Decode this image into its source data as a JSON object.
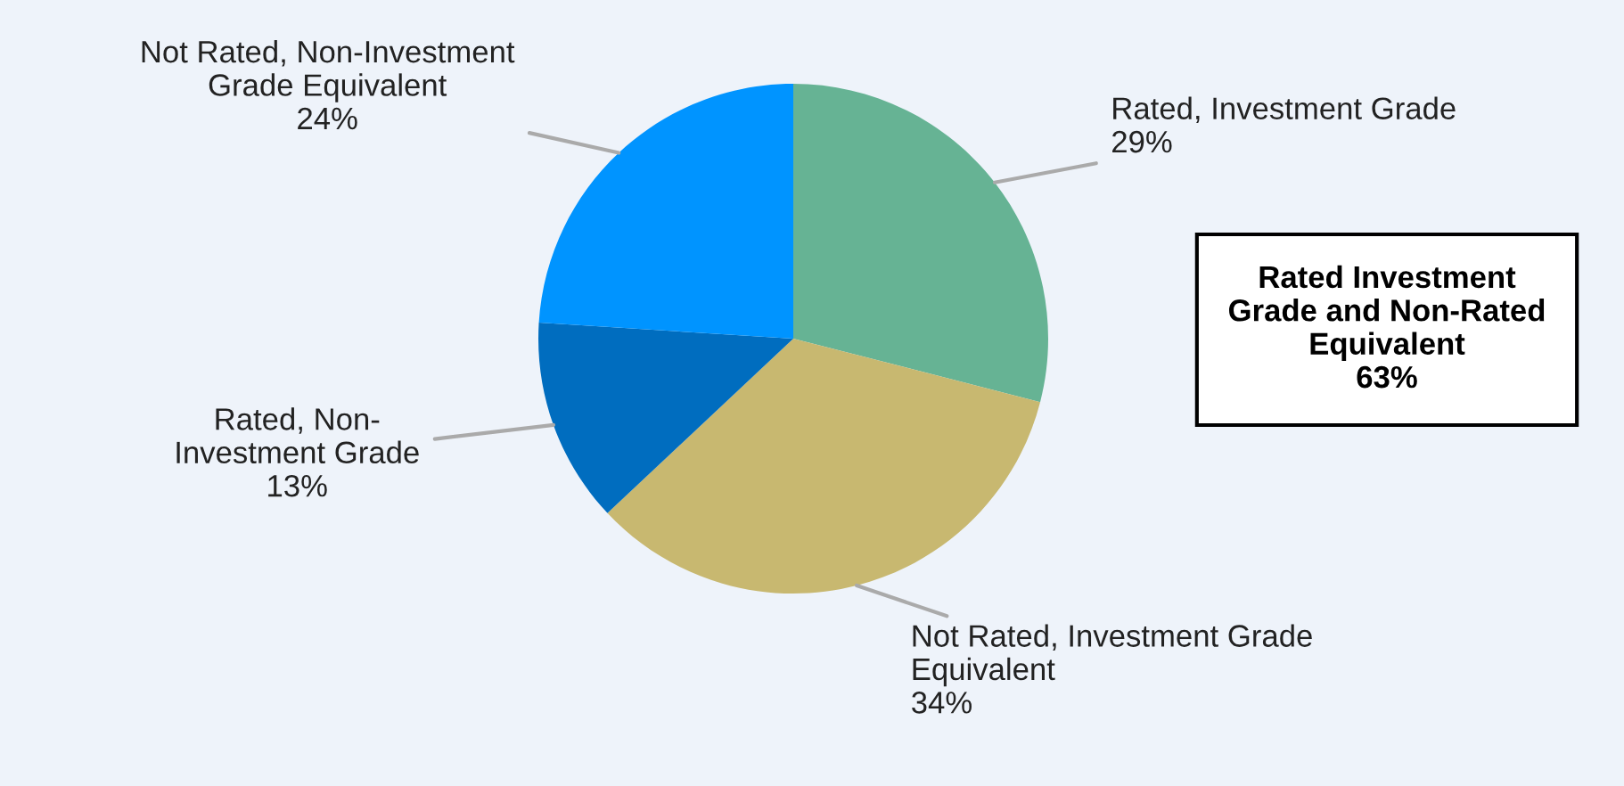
{
  "chart_data": {
    "type": "pie",
    "categories": [
      "Rated, Investment Grade",
      "Not Rated, Investment Grade\nEquivalent",
      "Rated, Non-\nInvestment Grade",
      "Not Rated, Non-Investment\nGrade Equivalent"
    ],
    "values": [
      29,
      34,
      13,
      24
    ],
    "colors": [
      "#66b394",
      "#c8b870",
      "#006dbf",
      "#0094ff"
    ],
    "value_labels": [
      "29%",
      "34%",
      "13%",
      "24%"
    ],
    "annotations": [
      "Rated Investment\nGrade and Non-Rated\nEquivalent\n63%"
    ]
  }
}
